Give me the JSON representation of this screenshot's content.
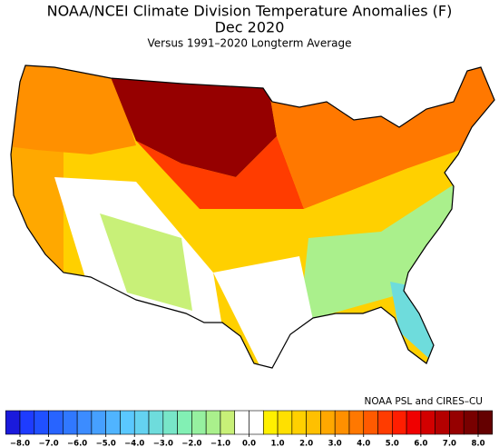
{
  "header": {
    "title": "NOAA/NCEI Climate Division Temperature Anomalies (F)",
    "period": "Dec 2020",
    "subtitle": "Versus 1991–2020 Longterm Average"
  },
  "credit": "NOAA PSL and CIRES–CU",
  "legend": {
    "ticks": [
      {
        "value": -8,
        "label": "−8.0"
      },
      {
        "value": -7,
        "label": "−7.0"
      },
      {
        "value": -6,
        "label": "−6.0"
      },
      {
        "value": -5,
        "label": "−5.0"
      },
      {
        "value": -4,
        "label": "−4.0"
      },
      {
        "value": -3,
        "label": "−3.0"
      },
      {
        "value": -2,
        "label": "−2.0"
      },
      {
        "value": -1,
        "label": "−1.0"
      },
      {
        "value": 0,
        "label": "0.0"
      },
      {
        "value": 1,
        "label": "1.0"
      },
      {
        "value": 2,
        "label": "2.0"
      },
      {
        "value": 3,
        "label": "3.0"
      },
      {
        "value": 4,
        "label": "4.0"
      },
      {
        "value": 5,
        "label": "5.0"
      },
      {
        "value": 6,
        "label": "6.0"
      },
      {
        "value": 7,
        "label": "7.0"
      },
      {
        "value": 8,
        "label": "8.0"
      }
    ],
    "colors": [
      "#1a1adc",
      "#1e3cff",
      "#2050ff",
      "#2864ff",
      "#3078ff",
      "#3c8cff",
      "#46a0ff",
      "#50b4ff",
      "#5ac8ff",
      "#64d2f0",
      "#6edcdc",
      "#78e6c8",
      "#82f0b4",
      "#96f0a0",
      "#aaf08c",
      "#c8f078",
      "#ffffff",
      "#ffffff",
      "#fff000",
      "#ffe000",
      "#ffd000",
      "#ffc000",
      "#ffa800",
      "#ff9000",
      "#ff7800",
      "#ff5a00",
      "#ff3c00",
      "#ff1e00",
      "#f00000",
      "#d20000",
      "#b40000",
      "#960000",
      "#780000",
      "#640000"
    ]
  }
}
